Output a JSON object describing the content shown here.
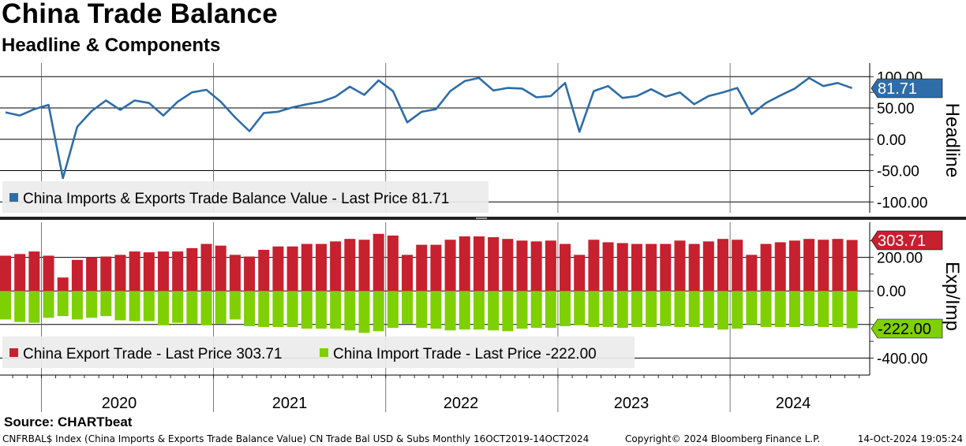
{
  "title": "China Trade Balance",
  "subtitle": "Headline & Components",
  "source": "Source: CHARTbeat",
  "footer": {
    "index_info": "CNFRBAL$ Index (China Imports & Exports Trade Balance Value) CN Trade Bal USD & Subs  Monthly 16OCT2019-14OCT2024",
    "copyright": "Copyright© 2024 Bloomberg Finance L.P.",
    "timestamp": "14-Oct-2024 19:05:24"
  },
  "colors": {
    "headline": "#2e6da8",
    "export": "#c7202f",
    "import": "#7fd000",
    "grid": "#000000"
  },
  "chart_data": [
    {
      "type": "line",
      "panel": "top",
      "ylabel": "Headline",
      "ylim": [
        -120,
        110
      ],
      "yticks": [
        100,
        50,
        0,
        -50,
        -100
      ],
      "ytick_labels": [
        "100.00",
        "50.00",
        "0.00",
        "-50.00",
        "-100.00"
      ],
      "last_value_label": "81.71",
      "legend": "China Imports & Exports Trade Balance Value - Last Price 81.71",
      "series": [
        {
          "name": "China Imports & Exports Trade Balance Value",
          "values": [
            43,
            38,
            48,
            55,
            -62,
            20,
            45,
            62,
            47,
            62,
            58,
            38,
            60,
            75,
            79,
            60,
            35,
            13,
            42,
            44,
            51,
            56,
            60,
            68,
            84,
            71,
            94,
            77,
            27,
            44,
            48,
            77,
            93,
            98,
            78,
            82,
            81,
            67,
            69,
            90,
            12,
            77,
            85,
            66,
            69,
            80,
            68,
            75,
            56,
            69,
            75,
            82,
            40,
            58,
            70,
            81,
            98,
            85,
            90,
            81.71
          ]
        }
      ]
    },
    {
      "type": "bar",
      "panel": "bottom",
      "ylabel": "Exp/Imp",
      "ylim": [
        -450,
        370
      ],
      "yticks": [
        200,
        0,
        -200,
        -400
      ],
      "ytick_labels": [
        "200.00",
        "0.00",
        "",
        "-400.00"
      ],
      "last_value_labels": [
        "303.71",
        "-222.00"
      ],
      "x_year_labels": [
        "2020",
        "2021",
        "2022",
        "2023",
        "2024"
      ],
      "series": [
        {
          "name": "China Export Trade",
          "legend": "China Export Trade - Last Price 303.71",
          "values": [
            210,
            220,
            235,
            210,
            80,
            185,
            200,
            205,
            215,
            235,
            230,
            235,
            235,
            255,
            280,
            270,
            215,
            205,
            245,
            265,
            265,
            280,
            280,
            295,
            310,
            305,
            340,
            330,
            215,
            275,
            275,
            305,
            325,
            325,
            320,
            310,
            300,
            295,
            300,
            280,
            215,
            305,
            290,
            285,
            280,
            280,
            280,
            300,
            280,
            295,
            310,
            305,
            215,
            280,
            290,
            300,
            310,
            305,
            310,
            303.71
          ]
        },
        {
          "name": "China Import Trade",
          "legend": "China Import Trade - Last Price -222.00",
          "values": [
            -170,
            -185,
            -190,
            -160,
            -150,
            -170,
            -160,
            -150,
            -175,
            -180,
            -180,
            -205,
            -190,
            -195,
            -205,
            -195,
            -170,
            -210,
            -215,
            -215,
            -215,
            -225,
            -225,
            -225,
            -235,
            -250,
            -240,
            -220,
            -195,
            -220,
            -225,
            -235,
            -230,
            -230,
            -235,
            -240,
            -225,
            -220,
            -220,
            -210,
            -205,
            -215,
            -215,
            -220,
            -215,
            -215,
            -210,
            -215,
            -215,
            -220,
            -230,
            -225,
            -200,
            -215,
            -215,
            -215,
            -210,
            -215,
            -215,
            -222.0
          ]
        }
      ]
    }
  ]
}
